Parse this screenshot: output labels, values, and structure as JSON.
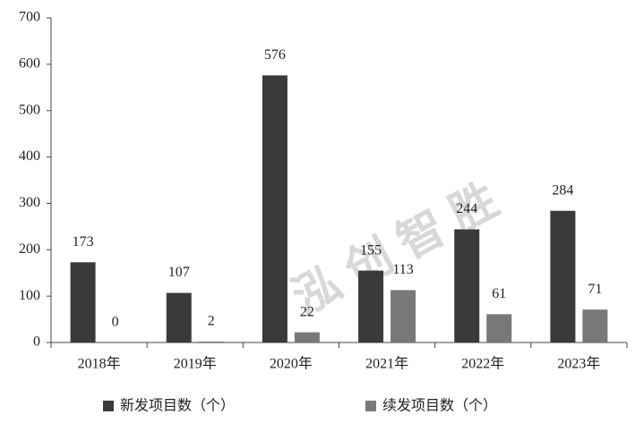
{
  "chart_data": {
    "type": "bar",
    "categories": [
      "2018年",
      "2019年",
      "2020年",
      "2021年",
      "2022年",
      "2023年"
    ],
    "series": [
      {
        "name": "新发项目数（个）",
        "color": "#3b3a39",
        "values": [
          173,
          107,
          576,
          155,
          244,
          284
        ]
      },
      {
        "name": "续发项目数（个）",
        "color": "#7a7877",
        "values": [
          0,
          2,
          22,
          113,
          61,
          71
        ]
      }
    ],
    "ylim": [
      0,
      700
    ],
    "yticks": [
      0,
      100,
      200,
      300,
      400,
      500,
      600,
      700
    ],
    "grid": false,
    "legend": "bottom",
    "watermark": "泓创智胜"
  }
}
